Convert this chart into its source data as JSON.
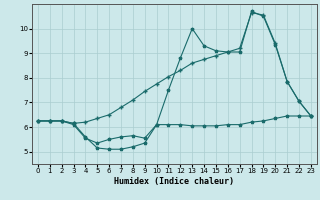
{
  "xlabel": "Humidex (Indice chaleur)",
  "bg_color": "#cce8ea",
  "grid_color": "#aacdd0",
  "line_color": "#1a6b6b",
  "xlim": [
    -0.5,
    23.5
  ],
  "ylim": [
    4.5,
    11.0
  ],
  "yticks": [
    5,
    6,
    7,
    8,
    9,
    10
  ],
  "xticks": [
    0,
    1,
    2,
    3,
    4,
    5,
    6,
    7,
    8,
    9,
    10,
    11,
    12,
    13,
    14,
    15,
    16,
    17,
    18,
    19,
    20,
    21,
    22,
    23
  ],
  "series1_x": [
    0,
    1,
    2,
    3,
    4,
    5,
    6,
    7,
    8,
    9,
    10,
    11,
    12,
    13,
    14,
    15,
    16,
    17,
    18,
    19,
    20,
    21,
    22,
    23
  ],
  "series1_y": [
    6.25,
    6.25,
    6.25,
    6.15,
    5.6,
    5.15,
    5.1,
    5.1,
    5.2,
    5.35,
    6.1,
    6.1,
    6.1,
    6.05,
    6.05,
    6.05,
    6.1,
    6.1,
    6.2,
    6.25,
    6.35,
    6.45,
    6.45,
    6.45
  ],
  "series2_x": [
    0,
    1,
    2,
    3,
    4,
    5,
    6,
    7,
    8,
    9,
    10,
    11,
    12,
    13,
    14,
    15,
    16,
    17,
    18,
    19,
    20,
    21,
    22,
    23
  ],
  "series2_y": [
    6.25,
    6.25,
    6.25,
    6.1,
    5.55,
    5.35,
    5.5,
    5.6,
    5.65,
    5.55,
    6.1,
    7.5,
    8.8,
    10.0,
    9.3,
    9.1,
    9.05,
    9.05,
    10.7,
    10.5,
    9.35,
    7.85,
    7.05,
    6.45
  ],
  "series3_x": [
    0,
    1,
    2,
    3,
    4,
    5,
    6,
    7,
    8,
    9,
    10,
    11,
    12,
    13,
    14,
    15,
    16,
    17,
    18,
    19,
    20,
    21,
    22,
    23
  ],
  "series3_y": [
    6.25,
    6.25,
    6.25,
    6.15,
    6.2,
    6.35,
    6.5,
    6.8,
    7.1,
    7.45,
    7.75,
    8.05,
    8.3,
    8.6,
    8.75,
    8.9,
    9.05,
    9.2,
    10.65,
    10.55,
    9.4,
    7.85,
    7.05,
    6.45
  ]
}
